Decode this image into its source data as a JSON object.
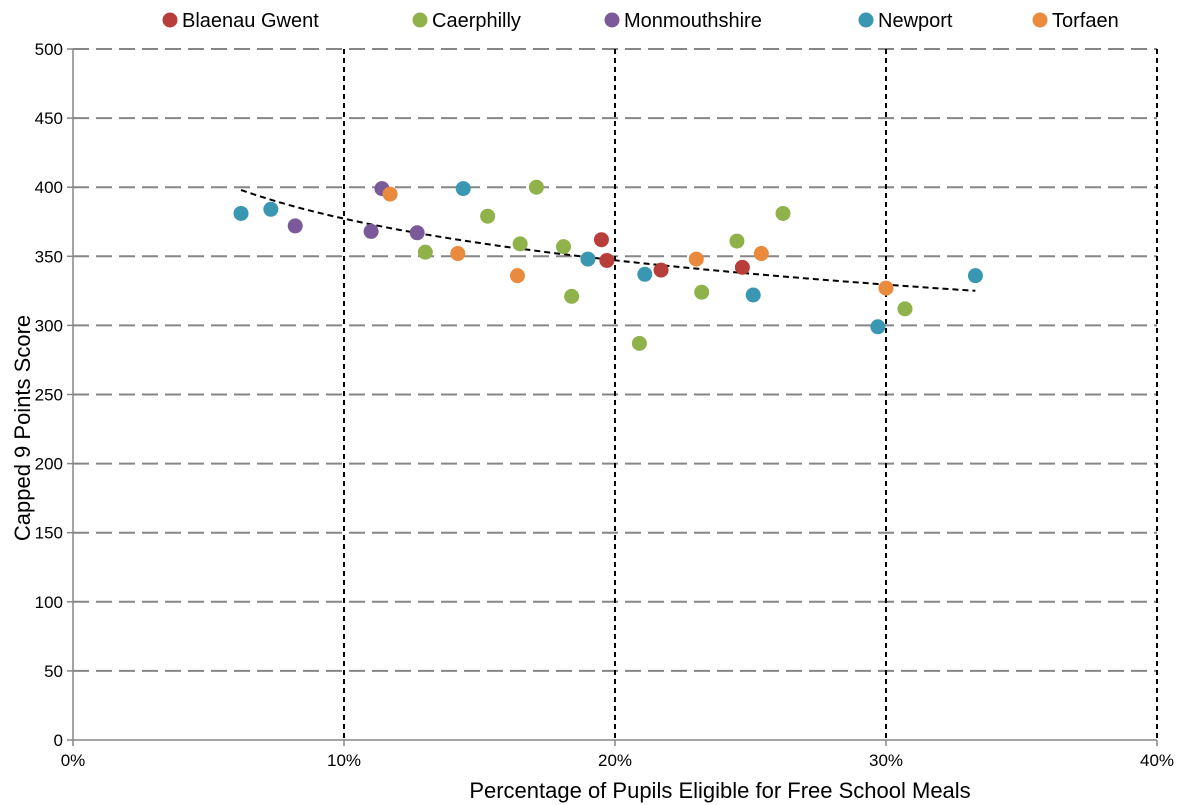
{
  "chart_data": {
    "type": "scatter",
    "xlabel": "Percentage of Pupils Eligible for Free School Meals",
    "ylabel": "Capped 9 Points Score",
    "xlim": [
      0,
      0.4
    ],
    "ylim": [
      0,
      500
    ],
    "x_ticks": [
      {
        "value": 0,
        "label": "0%"
      },
      {
        "value": 0.1,
        "label": "10%"
      },
      {
        "value": 0.2,
        "label": "20%"
      },
      {
        "value": 0.3,
        "label": "30%"
      },
      {
        "value": 0.4,
        "label": "40%"
      }
    ],
    "y_ticks": [
      {
        "value": 0,
        "label": "0"
      },
      {
        "value": 50,
        "label": "50"
      },
      {
        "value": 100,
        "label": "100"
      },
      {
        "value": 150,
        "label": "150"
      },
      {
        "value": 200,
        "label": "200"
      },
      {
        "value": 250,
        "label": "250"
      },
      {
        "value": 300,
        "label": "300"
      },
      {
        "value": 350,
        "label": "350"
      },
      {
        "value": 400,
        "label": "400"
      },
      {
        "value": 450,
        "label": "450"
      },
      {
        "value": 500,
        "label": "500"
      }
    ],
    "grid": {
      "horizontal": "dashed gray",
      "vertical": "dashed black at 10% intervals"
    },
    "legend_position": "top",
    "series": [
      {
        "name": "Blaenau Gwent",
        "color": "#b83e3a",
        "points": [
          {
            "x": 0.195,
            "y": 362
          },
          {
            "x": 0.197,
            "y": 347
          },
          {
            "x": 0.217,
            "y": 340
          },
          {
            "x": 0.247,
            "y": 342
          }
        ]
      },
      {
        "name": "Caerphilly",
        "color": "#8fb24a",
        "points": [
          {
            "x": 0.13,
            "y": 353
          },
          {
            "x": 0.153,
            "y": 379
          },
          {
            "x": 0.165,
            "y": 359
          },
          {
            "x": 0.171,
            "y": 400
          },
          {
            "x": 0.181,
            "y": 357
          },
          {
            "x": 0.184,
            "y": 321
          },
          {
            "x": 0.209,
            "y": 287
          },
          {
            "x": 0.232,
            "y": 324
          },
          {
            "x": 0.245,
            "y": 361
          },
          {
            "x": 0.262,
            "y": 381
          },
          {
            "x": 0.307,
            "y": 312
          }
        ]
      },
      {
        "name": "Monmouthshire",
        "color": "#7b5a99",
        "points": [
          {
            "x": 0.082,
            "y": 372
          },
          {
            "x": 0.11,
            "y": 368
          },
          {
            "x": 0.114,
            "y": 399
          },
          {
            "x": 0.127,
            "y": 367
          }
        ]
      },
      {
        "name": "Newport",
        "color": "#3a97b1",
        "points": [
          {
            "x": 0.062,
            "y": 381
          },
          {
            "x": 0.073,
            "y": 384
          },
          {
            "x": 0.144,
            "y": 399
          },
          {
            "x": 0.19,
            "y": 348
          },
          {
            "x": 0.211,
            "y": 337
          },
          {
            "x": 0.251,
            "y": 322
          },
          {
            "x": 0.297,
            "y": 299
          },
          {
            "x": 0.333,
            "y": 336
          }
        ]
      },
      {
        "name": "Torfaen",
        "color": "#e98a3d",
        "points": [
          {
            "x": 0.117,
            "y": 395
          },
          {
            "x": 0.142,
            "y": 352
          },
          {
            "x": 0.164,
            "y": 336
          },
          {
            "x": 0.23,
            "y": 348
          },
          {
            "x": 0.254,
            "y": 352
          },
          {
            "x": 0.3,
            "y": 327
          }
        ]
      }
    ],
    "trendline": {
      "style": "dashed black",
      "model": "logarithmic",
      "from_x": 0.062,
      "to_x": 0.333,
      "y_at_from": 398,
      "y_at_to": 325
    }
  }
}
